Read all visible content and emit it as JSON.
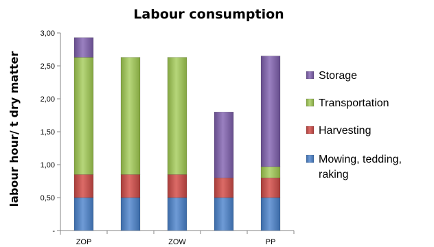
{
  "chart_data": {
    "type": "bar",
    "stacked": true,
    "title": "Labour consumption",
    "ylabel": "labour hour/ t dry matter",
    "xlabel": "",
    "ylim": [
      0,
      3.0
    ],
    "yticks": [
      "-",
      "0,50",
      "1,00",
      "1,50",
      "2,00",
      "2,50",
      "3,00"
    ],
    "categories": [
      "ZOP",
      "",
      "ZOW",
      "",
      "PP"
    ],
    "grid": false,
    "legend_position": "right",
    "series": [
      {
        "name": "Mowing, tedding, raking",
        "color": "#4f81bd",
        "values": [
          0.5,
          0.5,
          0.5,
          0.5,
          0.5
        ]
      },
      {
        "name": "Harvesting",
        "color": "#c0504d",
        "values": [
          0.35,
          0.35,
          0.35,
          0.3,
          0.3
        ]
      },
      {
        "name": "Transportation",
        "color": "#9bbb59",
        "values": [
          1.78,
          1.78,
          1.78,
          0.0,
          0.17
        ]
      },
      {
        "name": "Storage",
        "color": "#8064a2",
        "values": [
          0.3,
          0.0,
          0.0,
          1.0,
          1.68
        ]
      }
    ],
    "legend_order": [
      3,
      2,
      1,
      0
    ]
  }
}
